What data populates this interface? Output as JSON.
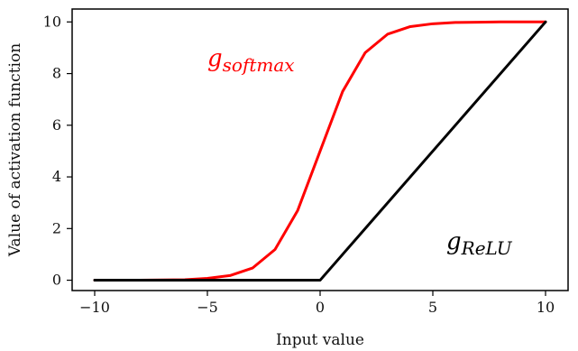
{
  "chart_data": {
    "type": "line",
    "xlabel": "Input value",
    "ylabel": "Value of activation function",
    "xlim": [
      -11,
      11
    ],
    "ylim": [
      -0.4,
      10.5
    ],
    "xticks": [
      -10,
      -5,
      0,
      5,
      10
    ],
    "yticks": [
      0,
      2,
      4,
      6,
      8,
      10
    ],
    "xtick_labels": [
      "−10",
      "−5",
      "0",
      "5",
      "10"
    ],
    "ytick_labels": [
      "0",
      "2",
      "4",
      "6",
      "8",
      "10"
    ],
    "grid": false,
    "legend": "none",
    "series": [
      {
        "name": "g_softmax",
        "color": "#ff0000",
        "x": [
          -10,
          -9,
          -8,
          -7,
          -6,
          -5,
          -4,
          -3,
          -2,
          -1,
          0,
          1,
          2,
          3,
          4,
          5,
          6,
          7,
          8,
          9,
          10
        ],
        "y": [
          0.0,
          0.0,
          0.0,
          0.01,
          0.02,
          0.07,
          0.18,
          0.47,
          1.19,
          2.69,
          5.0,
          7.31,
          8.81,
          9.53,
          9.82,
          9.93,
          9.98,
          9.99,
          10.0,
          10.0,
          10.0
        ]
      },
      {
        "name": "g_ReLU",
        "color": "#000000",
        "x": [
          -10,
          0,
          10
        ],
        "y": [
          0.0,
          0.0,
          10.0
        ]
      }
    ],
    "annotations": [
      {
        "base": "g",
        "sub": "softmax",
        "x": -5,
        "y": 8.3,
        "color": "#ff0000"
      },
      {
        "base": "g",
        "sub": "ReLU",
        "x": 5.6,
        "y": 1.2,
        "color": "#000000"
      }
    ]
  }
}
